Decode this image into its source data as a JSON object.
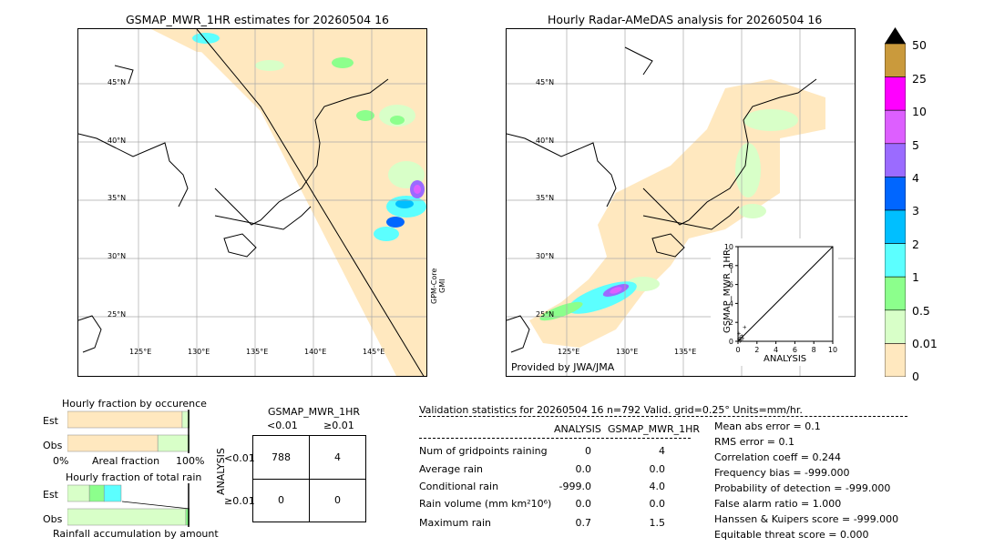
{
  "left_map": {
    "title": "GSMAP_MWR_1HR estimates for 20260504 16",
    "lat_labels": [
      "45°N",
      "40°N",
      "35°N",
      "30°N",
      "25°N"
    ],
    "lon_labels": [
      "125°E",
      "130°E",
      "135°E",
      "140°E",
      "145°E"
    ],
    "side_label_1": "GPM-Core",
    "side_label_2": "GMI"
  },
  "right_map": {
    "title": "Hourly Radar-AMeDAS analysis for 20260504 16",
    "lat_labels": [
      "45°N",
      "40°N",
      "35°N",
      "30°N",
      "25°N"
    ],
    "lon_labels": [
      "125°E",
      "130°E",
      "135°E"
    ],
    "credit": "Provided by JWA/JMA"
  },
  "colorbar": {
    "labels": [
      "50",
      "25",
      "10",
      "5",
      "4",
      "3",
      "2",
      "1",
      "0.5",
      "0.01",
      "0"
    ],
    "colors": [
      "#ca9a3c",
      "#ff00ff",
      "#dd5fff",
      "#9b6bff",
      "#0066ff",
      "#00bfff",
      "#5cffff",
      "#8cff8c",
      "#d8ffc8",
      "#ffe8bf"
    ],
    "over_color": "#000000"
  },
  "chart_data": [
    {
      "type": "scatter",
      "title": "",
      "xlabel": "ANALYSIS",
      "ylabel": "GSMAP_MWR_1HR",
      "xlim": [
        0,
        10
      ],
      "ylim": [
        0,
        10
      ],
      "x_ticks": [
        "0",
        "2",
        "4",
        "6",
        "8",
        "10"
      ],
      "y_ticks": [
        "0",
        "2",
        "4",
        "6",
        "8",
        "10"
      ],
      "points": [
        [
          0.1,
          0.2
        ],
        [
          0.2,
          0.4
        ],
        [
          0.3,
          0.1
        ],
        [
          0.4,
          0.6
        ],
        [
          0.5,
          0.3
        ],
        [
          0.7,
          1.5
        ],
        [
          0.2,
          0.0
        ],
        [
          0.1,
          0.8
        ]
      ]
    },
    {
      "type": "bar",
      "title": "Hourly fraction by occurence",
      "categories": [
        "Est",
        "Obs"
      ],
      "xlabel": "Areal fraction",
      "x_ticks": [
        "0%",
        "100%"
      ],
      "series": [
        {
          "values": [
            0.94,
            0.74
          ],
          "color": "#ffe8bf"
        },
        {
          "values": [
            0.05,
            0.25
          ],
          "color": "#d8ffc8"
        },
        {
          "values": [
            0.01,
            0.01
          ],
          "color": "#8cff8c"
        }
      ]
    },
    {
      "type": "bar",
      "title": "Hourly fraction of total rain",
      "categories": [
        "Est",
        "Obs"
      ],
      "xlabel": "Rainfall accumulation by amount",
      "series": [
        {
          "values": [
            0.18,
            0.97
          ],
          "color": "#d8ffc8"
        },
        {
          "values": [
            0.12,
            0.03
          ],
          "color": "#8cff8c"
        },
        {
          "values": [
            0.14,
            0.0
          ],
          "color": "#5cffff"
        }
      ]
    }
  ],
  "contingency": {
    "title": "GSMAP_MWR_1HR",
    "col_labels": [
      "<0.01",
      "≥0.01"
    ],
    "row_labels": [
      "<0.01",
      "≥0.01"
    ],
    "side_label": "ANALYSIS",
    "cells": [
      [
        "788",
        "4"
      ],
      [
        "0",
        "0"
      ]
    ]
  },
  "validation": {
    "header": "Validation statistics for 20260504 16  n=792 Valid. grid=0.25° Units=mm/hr.",
    "col1": "ANALYSIS",
    "col2": "GSMAP_MWR_1HR",
    "rows": [
      {
        "label": "Num of gridpoints raining",
        "a": "0",
        "b": "4"
      },
      {
        "label": "Average rain",
        "a": "0.0",
        "b": "0.0"
      },
      {
        "label": "Conditional rain",
        "a": "-999.0",
        "b": "4.0"
      },
      {
        "label": "Rain volume (mm km²10⁶)",
        "a": "0.0",
        "b": "0.0"
      },
      {
        "label": "Maximum rain",
        "a": "0.7",
        "b": "1.5"
      }
    ],
    "scores": [
      "Mean abs error =    0.1",
      "RMS error =    0.1",
      "Correlation coeff =  0.244",
      "Frequency bias = -999.000",
      "Probability of detection = -999.000",
      "False alarm ratio =  1.000",
      "Hanssen & Kuipers score = -999.000",
      "Equitable threat score =  0.000"
    ]
  }
}
